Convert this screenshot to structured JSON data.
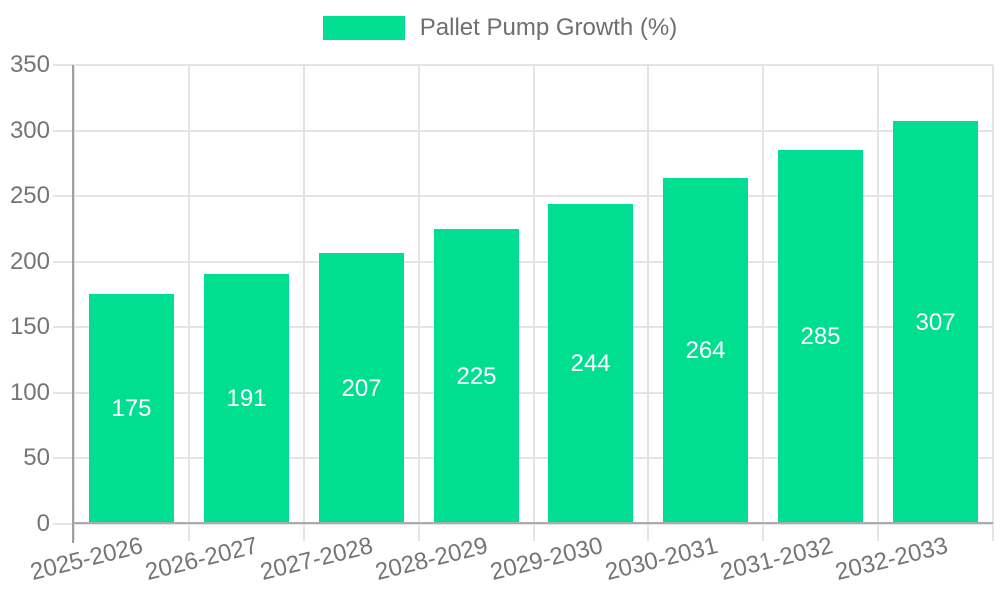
{
  "legend": {
    "label": "Pallet Pump Growth (%)"
  },
  "colors": {
    "bar": "#00DE91",
    "grid": "#e4e4e4",
    "axis_y": "#9f9f9f",
    "axis_x": "#ababab",
    "tick_text": "#757575",
    "legend_text": "#6f6f6f",
    "value_text": "#ffffff",
    "background": "#ffffff"
  },
  "chart_data": {
    "type": "bar",
    "title": "",
    "xlabel": "",
    "ylabel": "",
    "categories": [
      "2025-2026",
      "2026-2027",
      "2027-2028",
      "2028-2029",
      "2029-2030",
      "2030-2031",
      "2031-2032",
      "2032-2033"
    ],
    "values": [
      175,
      191,
      207,
      225,
      244,
      264,
      285,
      307
    ],
    "series_name": "Pallet Pump Growth (%)",
    "ylim": [
      0,
      350
    ],
    "yticks": [
      0,
      50,
      100,
      150,
      200,
      250,
      300,
      350
    ],
    "grid": true,
    "legend_position": "top-center",
    "value_labels": "inside-center",
    "x_label_rotation_deg": -14
  }
}
